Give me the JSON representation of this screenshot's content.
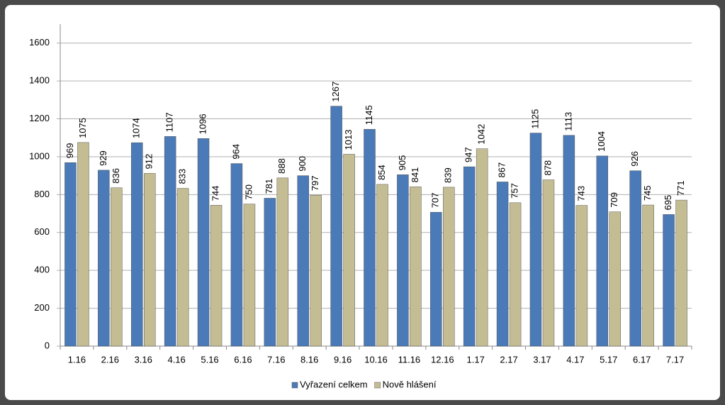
{
  "chart_data": {
    "type": "bar",
    "categories": [
      "1.16",
      "2.16",
      "3.16",
      "4.16",
      "5.16",
      "6.16",
      "7.16",
      "8.16",
      "9.16",
      "10.16",
      "11.16",
      "12.16",
      "1.17",
      "2.17",
      "3.17",
      "4.17",
      "5.17",
      "6.17",
      "7.17"
    ],
    "series": [
      {
        "name": "Vyřazení celkem",
        "color": "#4a7ab8",
        "values": [
          969,
          929,
          1074,
          1107,
          1096,
          964,
          781,
          900,
          1267,
          1145,
          905,
          707,
          947,
          867,
          1125,
          1113,
          1004,
          926,
          695
        ]
      },
      {
        "name": "Nově hlášení",
        "color": "#c4bd94",
        "values": [
          1075,
          836,
          912,
          833,
          744,
          750,
          888,
          797,
          1013,
          854,
          841,
          839,
          1042,
          757,
          878,
          743,
          709,
          745,
          771
        ]
      }
    ],
    "ylim": [
      0,
      1700
    ],
    "yticks": [
      0,
      200,
      400,
      600,
      800,
      1000,
      1200,
      1400,
      1600
    ],
    "grid": true,
    "legend": "bottom"
  }
}
